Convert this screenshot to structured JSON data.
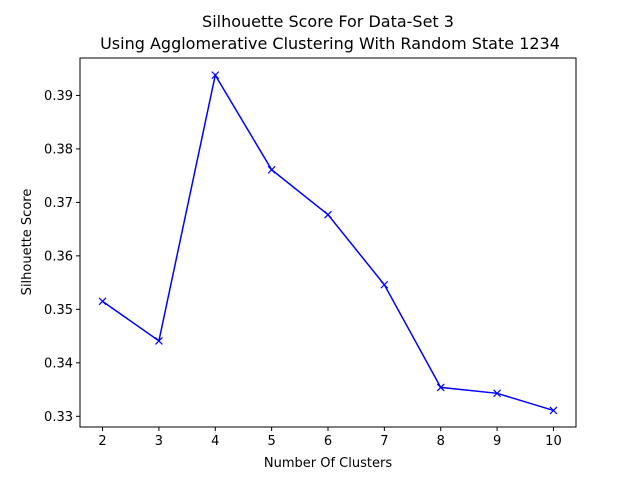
{
  "chart_data": {
    "type": "line",
    "title": "Silhouette Score For Data-Set 3",
    "subtitle": "Using Agglomerative Clustering With Random State 1234",
    "xlabel": "Number Of Clusters",
    "ylabel": "Silhouette Score",
    "x": [
      2,
      3,
      4,
      5,
      6,
      7,
      8,
      9,
      10
    ],
    "series": [
      {
        "values": [
          0.3515,
          0.3441,
          0.3938,
          0.3761,
          0.3677,
          0.3546,
          0.3354,
          0.3343,
          0.3311
        ],
        "color": "#0000ff",
        "marker": "x"
      }
    ],
    "xlim": [
      1.6,
      10.4
    ],
    "ylim": [
      0.328,
      0.397
    ],
    "xticks": [
      2,
      3,
      4,
      5,
      6,
      7,
      8,
      9,
      10
    ],
    "xtick_labels": [
      "2",
      "3",
      "4",
      "5",
      "6",
      "7",
      "8",
      "9",
      "10"
    ],
    "yticks": [
      0.33,
      0.34,
      0.35,
      0.36,
      0.37,
      0.38,
      0.39
    ],
    "ytick_labels": [
      "0.33",
      "0.34",
      "0.35",
      "0.36",
      "0.37",
      "0.38",
      "0.39"
    ],
    "grid": false,
    "legend": "none"
  }
}
